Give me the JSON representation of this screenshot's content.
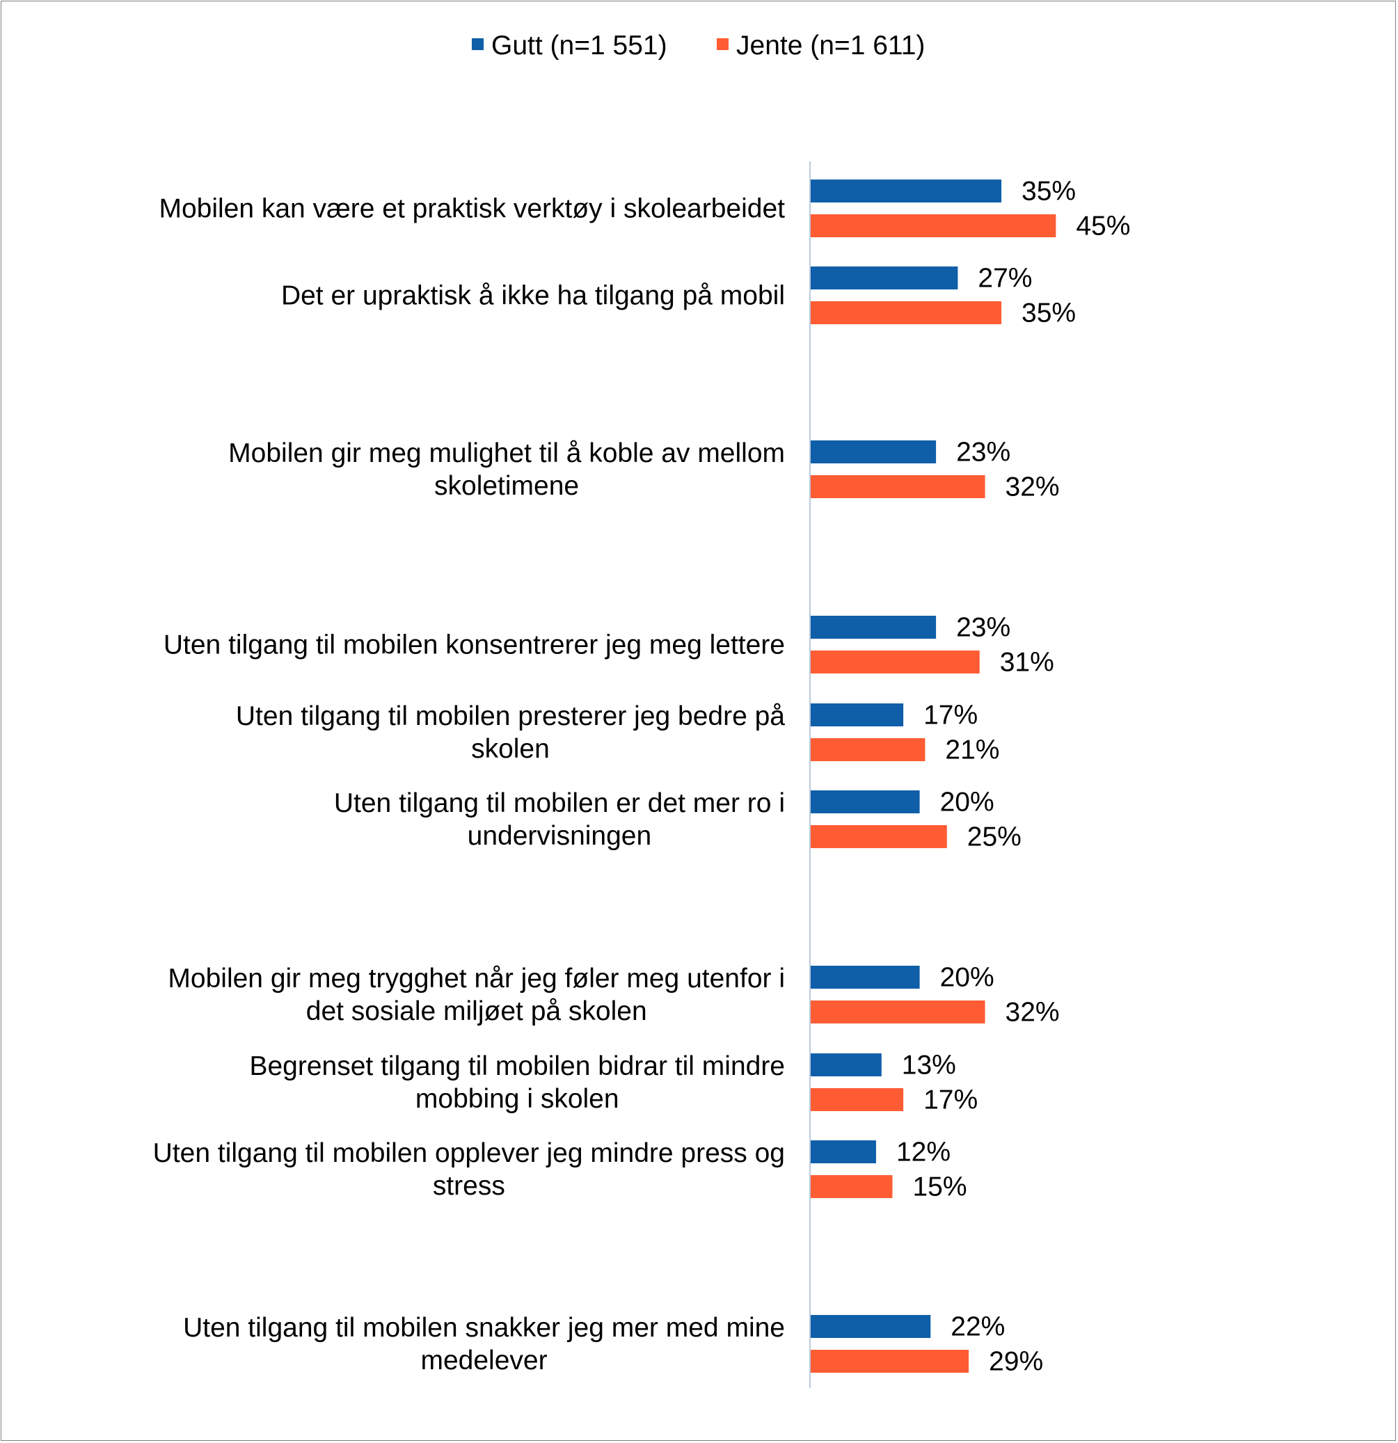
{
  "chart_data": {
    "type": "bar",
    "orientation": "horizontal",
    "title": "",
    "xlabel": "",
    "ylabel": "",
    "xlim": [
      0,
      100
    ],
    "grid": false,
    "legend_position": "top-center",
    "value_suffix": "%",
    "series": [
      {
        "name": "Gutt (n=1 551)",
        "color": "#0F5FA8",
        "values": [
          35,
          27,
          23,
          23,
          17,
          20,
          20,
          13,
          12,
          22
        ]
      },
      {
        "name": "Jente (n=1 611)",
        "color": "#FF5C33",
        "values": [
          45,
          35,
          32,
          31,
          21,
          25,
          32,
          17,
          15,
          29
        ]
      }
    ],
    "categories": [
      [
        "Mobilen kan være et praktisk verktøy i skolearbeidet"
      ],
      [
        "Det er upraktisk å ikke ha tilgang på mobil"
      ],
      [
        "Mobilen gir meg mulighet til å koble av mellom",
        "skoletimene"
      ],
      [
        "Uten tilgang til mobilen  konsentrerer jeg meg lettere"
      ],
      [
        "Uten tilgang til mobilen presterer jeg bedre på",
        "skolen"
      ],
      [
        "Uten tilgang til mobilen er det mer ro i",
        "undervisningen"
      ],
      [
        "Mobilen gir meg trygghet når jeg føler meg utenfor i",
        "det sosiale miljøet på skolen"
      ],
      [
        "Begrenset tilgang til mobilen bidrar til mindre",
        "mobbing i skolen"
      ],
      [
        "Uten tilgang til mobilen opplever jeg mindre press og",
        "stress"
      ],
      [
        "Uten tilgang til mobilen snakker jeg mer med mine",
        "medelever"
      ]
    ]
  }
}
